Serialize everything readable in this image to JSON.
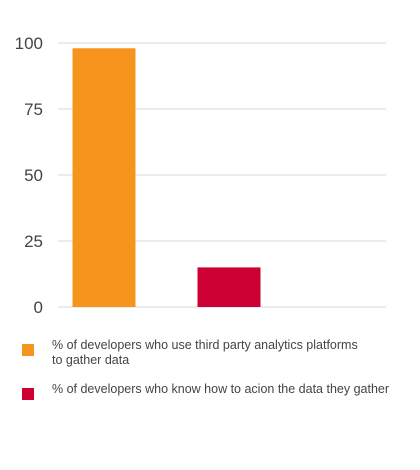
{
  "chart_data": {
    "type": "bar",
    "title": "",
    "xlabel": "",
    "ylabel": "",
    "ylim": [
      0,
      100
    ],
    "yticks": [
      0,
      25,
      50,
      75,
      100
    ],
    "grid": true,
    "legend_position": "bottom",
    "categories": [
      "% of developers who use third party analytics platforms\n to gather data",
      "% of developers who know how to acion the data they gather"
    ],
    "values": [
      98,
      15
    ],
    "colors": [
      "#f7941d",
      "#cc0033"
    ]
  }
}
